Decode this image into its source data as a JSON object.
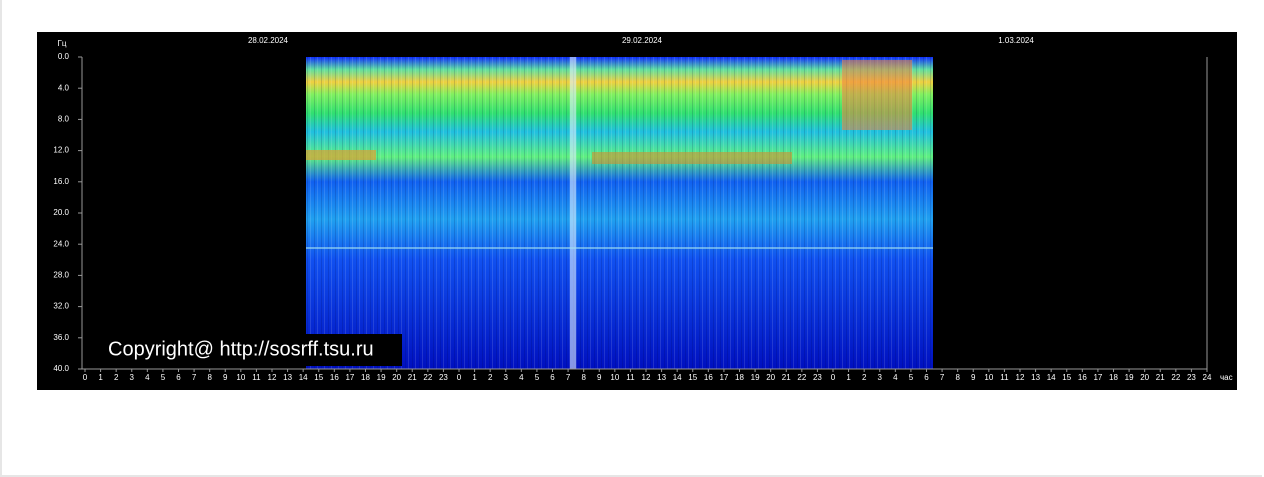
{
  "chart_data": {
    "type": "spectrogram",
    "y_unit": "Гц",
    "x_unit": "час",
    "dates": [
      "28.02.2024",
      "29.02.2024",
      "1.03.2024"
    ],
    "ylim": [
      0,
      40
    ],
    "yticks": [
      {
        "value": 0,
        "label": "0.0"
      },
      {
        "value": 4,
        "label": "4.0"
      },
      {
        "value": 8,
        "label": "8.0"
      },
      {
        "value": 12,
        "label": "12.0"
      },
      {
        "value": 16,
        "label": "16.0"
      },
      {
        "value": 20,
        "label": "20.0"
      },
      {
        "value": 24,
        "label": "24.0"
      },
      {
        "value": 28,
        "label": "28.0"
      },
      {
        "value": 32,
        "label": "32.0"
      },
      {
        "value": 36,
        "label": "36.0"
      },
      {
        "value": 40,
        "label": "40.0"
      }
    ],
    "hour_ticks": [
      0,
      1,
      2,
      3,
      4,
      5,
      6,
      7,
      8,
      9,
      10,
      11,
      12,
      13,
      14,
      15,
      16,
      17,
      18,
      19,
      20,
      21,
      22,
      23,
      0,
      1,
      2,
      3,
      4,
      5,
      6,
      7,
      8,
      9,
      10,
      11,
      12,
      13,
      14,
      15,
      16,
      17,
      18,
      19,
      20,
      21,
      22,
      23,
      0,
      1,
      2,
      3,
      4,
      5,
      6,
      7,
      8,
      9,
      10,
      11,
      12,
      13,
      14,
      15,
      16,
      17,
      18,
      19,
      20,
      21,
      22,
      23,
      24
    ],
    "copyright": "Copyright@ http://sosrff.tsu.ru"
  }
}
